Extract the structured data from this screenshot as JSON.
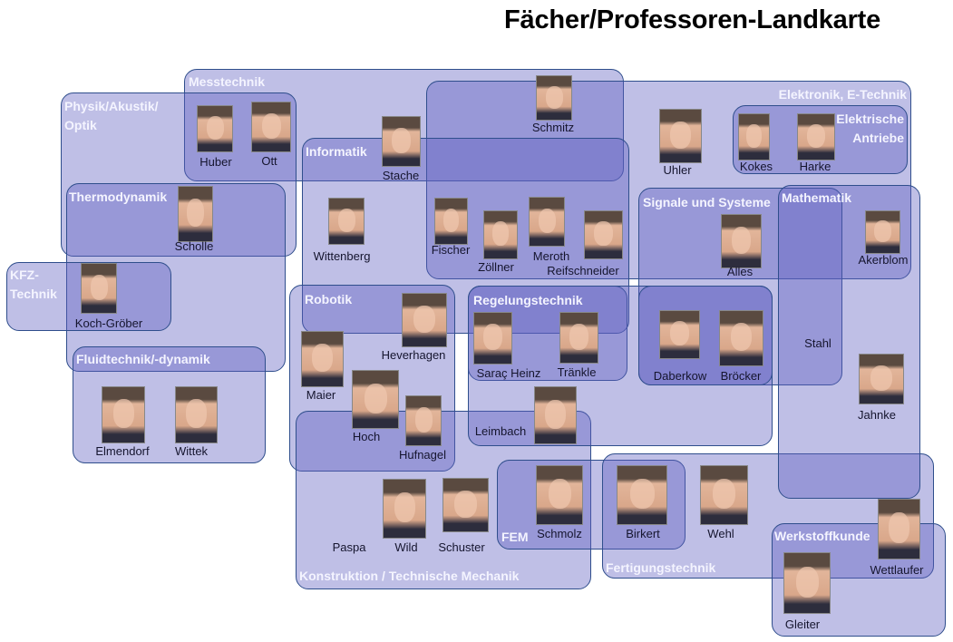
{
  "title": "Fächer/Professoren-Landkarte",
  "colors": {
    "group_fill": "#bfbfe6",
    "group_overlap": "#9999d7",
    "group_border": "#2f4e8c",
    "group_label": "#f4f4ff",
    "name_text": "#15152e"
  },
  "groups": [
    {
      "label": "Messtechnik"
    },
    {
      "label": "Elektronik, E-Technik"
    },
    {
      "label": "Physik/Akustik/"
    },
    {
      "label": "Thermodynamik"
    },
    {
      "label": "KFZ-"
    },
    {
      "label": "Fluidtechnik/-dynamik"
    },
    {
      "label": "Informatik"
    },
    {
      "label": "Robotik"
    },
    {
      "label": "Regelungstechnik"
    },
    {
      "label": "Konstruktion / Technische Mechanik"
    },
    {
      "label": "FEM"
    },
    {
      "label": "Fertigungstechnik"
    },
    {
      "label": "Signale und Systeme"
    },
    {
      "label": "Mathematik"
    },
    {
      "label": "Elektrische"
    },
    {
      "label": "Werkstoffkunde"
    }
  ],
  "group_label_lines2": {
    "physik": "Optik",
    "kfz": "Technik",
    "antriebe": "Antriebe"
  },
  "people": [
    {
      "name": "Huber"
    },
    {
      "name": "Ott"
    },
    {
      "name": "Stache"
    },
    {
      "name": "Schmitz"
    },
    {
      "name": "Uhler"
    },
    {
      "name": "Kokes"
    },
    {
      "name": "Harke"
    },
    {
      "name": "Scholle"
    },
    {
      "name": "Wittenberg"
    },
    {
      "name": "Fischer"
    },
    {
      "name": "Zöllner"
    },
    {
      "name": "Meroth"
    },
    {
      "name": "Reifschneider"
    },
    {
      "name": "Alles"
    },
    {
      "name": "Akerblom"
    },
    {
      "name": "Koch-Gröber"
    },
    {
      "name": "Heverhagen"
    },
    {
      "name": "Maier"
    },
    {
      "name": "Hoch"
    },
    {
      "name": "Hufnagel"
    },
    {
      "name": "Saraç Heinz"
    },
    {
      "name": "Tränkle"
    },
    {
      "name": "Daberkow"
    },
    {
      "name": "Bröcker"
    },
    {
      "name": "Stahl"
    },
    {
      "name": "Jahnke"
    },
    {
      "name": "Leimbach"
    },
    {
      "name": "Paspa"
    },
    {
      "name": "Wild"
    },
    {
      "name": "Schuster"
    },
    {
      "name": "Schmolz"
    },
    {
      "name": "Birkert"
    },
    {
      "name": "Wehl"
    },
    {
      "name": "Wettlaufer"
    },
    {
      "name": "Gleiter"
    },
    {
      "name": "Elmendorf"
    },
    {
      "name": "Wittek"
    }
  ]
}
